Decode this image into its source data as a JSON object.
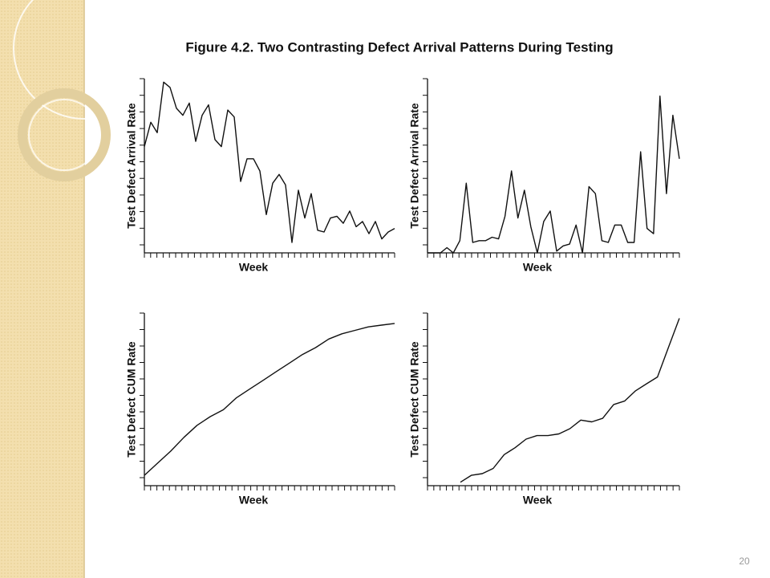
{
  "title": "Figure 4.2. Two Contrasting Defect Arrival Patterns During Testing",
  "page_number": "20",
  "chart_data": [
    {
      "type": "line",
      "ylabel": "Test Defect Arrival Rate",
      "xlabel": "Week",
      "ylim": [
        0,
        100
      ],
      "color": "#111111",
      "values": [
        61,
        75,
        69,
        98,
        95,
        83,
        79,
        86,
        64,
        79,
        85,
        65,
        61,
        82,
        78,
        41,
        54,
        54,
        47,
        22,
        40,
        45,
        39,
        6,
        36,
        20,
        34,
        13,
        12,
        20,
        21,
        17,
        24,
        15,
        18,
        11,
        18,
        8,
        12,
        14
      ]
    },
    {
      "type": "line",
      "ylabel": "Test Defect Arrival Rate",
      "xlabel": "Week",
      "ylim": [
        0,
        100
      ],
      "color": "#111111",
      "values": [
        0,
        0,
        0,
        3,
        0,
        7,
        40,
        6,
        7,
        7,
        9,
        8,
        21,
        47,
        20,
        36,
        15,
        0,
        18,
        24,
        1,
        4,
        5,
        16,
        0,
        38,
        34,
        7,
        6,
        16,
        16,
        6,
        6,
        58,
        14,
        11,
        90,
        34,
        79,
        54
      ]
    },
    {
      "type": "line",
      "ylabel": "Test Defect CUM Rate",
      "xlabel": "Week",
      "ylim": [
        0,
        100
      ],
      "color": "#111111",
      "values": [
        6,
        13,
        20,
        28,
        35,
        40,
        44,
        51,
        56,
        61,
        66,
        71,
        76,
        80,
        85,
        88,
        90,
        92,
        93,
        94
      ]
    },
    {
      "type": "line",
      "ylabel": "Test Defect CUM Rate",
      "xlabel": "Week",
      "ylim": [
        0,
        100
      ],
      "color": "#111111",
      "values": [
        null,
        null,
        null,
        2,
        6,
        7,
        10,
        18,
        22,
        27,
        29,
        29,
        30,
        33,
        38,
        37,
        39,
        47,
        49,
        55,
        59,
        63,
        80,
        97
      ]
    }
  ]
}
